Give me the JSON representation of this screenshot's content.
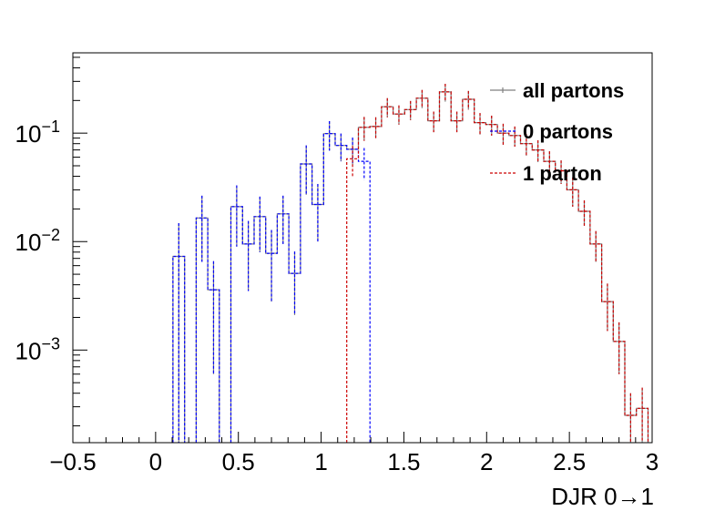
{
  "chart_data": {
    "type": "histogram",
    "xlabel": "DJR 0→1",
    "ylabel": "",
    "log_y": true,
    "xlim": [
      -0.5,
      3.0
    ],
    "ylim": [
      0.00014,
      0.55
    ],
    "bin_width": 0.07,
    "grid": false,
    "legend_position": "top-right",
    "x_tick_labels": [
      "−0.5",
      "0",
      "0.5",
      "1",
      "1.5",
      "2",
      "2.5",
      "3"
    ],
    "x_tick_values": [
      -0.5,
      0,
      0.5,
      1,
      1.5,
      2,
      2.5,
      3
    ],
    "y_tick_labels": [
      {
        "base": "10",
        "exp": "−1"
      },
      {
        "base": "10",
        "exp": "−2"
      },
      {
        "base": "10",
        "exp": "−3"
      }
    ],
    "y_tick_values": [
      0.1,
      0.01,
      0.001
    ],
    "series": [
      {
        "name": "all partons",
        "color": "#808080",
        "linestyle": "solid",
        "bins": [
          {
            "x": 0.14,
            "y": 0.0073,
            "err": 0.0075
          },
          {
            "x": 0.28,
            "y": 0.0165,
            "err": 0.01
          },
          {
            "x": 0.35,
            "y": 0.0036,
            "err": 0.003
          },
          {
            "x": 0.49,
            "y": 0.021,
            "err": 0.012
          },
          {
            "x": 0.56,
            "y": 0.0095,
            "err": 0.006
          },
          {
            "x": 0.63,
            "y": 0.017,
            "err": 0.009
          },
          {
            "x": 0.7,
            "y": 0.0078,
            "err": 0.005
          },
          {
            "x": 0.77,
            "y": 0.018,
            "err": 0.0085
          },
          {
            "x": 0.84,
            "y": 0.0051,
            "err": 0.003
          },
          {
            "x": 0.91,
            "y": 0.052,
            "err": 0.025
          },
          {
            "x": 0.98,
            "y": 0.022,
            "err": 0.012
          },
          {
            "x": 1.05,
            "y": 0.099,
            "err": 0.03
          },
          {
            "x": 1.12,
            "y": 0.077,
            "err": 0.022
          },
          {
            "x": 1.19,
            "y": 0.071,
            "err": 0.02
          },
          {
            "x": 1.26,
            "y": 0.113,
            "err": 0.028
          },
          {
            "x": 1.33,
            "y": 0.115,
            "err": 0.025
          },
          {
            "x": 1.4,
            "y": 0.175,
            "err": 0.035
          },
          {
            "x": 1.47,
            "y": 0.15,
            "err": 0.03
          },
          {
            "x": 1.54,
            "y": 0.165,
            "err": 0.033
          },
          {
            "x": 1.61,
            "y": 0.21,
            "err": 0.04
          },
          {
            "x": 1.68,
            "y": 0.13,
            "err": 0.028
          },
          {
            "x": 1.75,
            "y": 0.24,
            "err": 0.045
          },
          {
            "x": 1.82,
            "y": 0.13,
            "err": 0.028
          },
          {
            "x": 1.89,
            "y": 0.205,
            "err": 0.04
          },
          {
            "x": 1.96,
            "y": 0.125,
            "err": 0.028
          },
          {
            "x": 2.03,
            "y": 0.12,
            "err": 0.025
          },
          {
            "x": 2.1,
            "y": 0.1,
            "err": 0.022
          },
          {
            "x": 2.17,
            "y": 0.095,
            "err": 0.02
          },
          {
            "x": 2.24,
            "y": 0.08,
            "err": 0.018
          },
          {
            "x": 2.31,
            "y": 0.07,
            "err": 0.016
          },
          {
            "x": 2.38,
            "y": 0.055,
            "err": 0.013
          },
          {
            "x": 2.45,
            "y": 0.045,
            "err": 0.011
          },
          {
            "x": 2.52,
            "y": 0.03,
            "err": 0.009
          },
          {
            "x": 2.59,
            "y": 0.019,
            "err": 0.005
          },
          {
            "x": 2.66,
            "y": 0.0095,
            "err": 0.003
          },
          {
            "x": 2.73,
            "y": 0.0028,
            "err": 0.0013
          },
          {
            "x": 2.8,
            "y": 0.0012,
            "err": 0.0006
          },
          {
            "x": 2.87,
            "y": 0.00025,
            "err": 0.00015
          },
          {
            "x": 2.94,
            "y": 0.00029,
            "err": 0.00016
          }
        ]
      },
      {
        "name": "0 partons",
        "color": "#0000ff",
        "linestyle": "dashed",
        "bins": [
          {
            "x": 0.14,
            "y": 0.0073,
            "err": 0.0075
          },
          {
            "x": 0.28,
            "y": 0.0165,
            "err": 0.01
          },
          {
            "x": 0.35,
            "y": 0.0036,
            "err": 0.003
          },
          {
            "x": 0.49,
            "y": 0.021,
            "err": 0.012
          },
          {
            "x": 0.56,
            "y": 0.0095,
            "err": 0.006
          },
          {
            "x": 0.63,
            "y": 0.017,
            "err": 0.009
          },
          {
            "x": 0.7,
            "y": 0.0078,
            "err": 0.005
          },
          {
            "x": 0.77,
            "y": 0.018,
            "err": 0.0085
          },
          {
            "x": 0.84,
            "y": 0.0051,
            "err": 0.003
          },
          {
            "x": 0.91,
            "y": 0.052,
            "err": 0.025
          },
          {
            "x": 0.98,
            "y": 0.022,
            "err": 0.012
          },
          {
            "x": 1.05,
            "y": 0.099,
            "err": 0.03
          },
          {
            "x": 1.12,
            "y": 0.077,
            "err": 0.022
          },
          {
            "x": 1.19,
            "y": 0.071,
            "err": 0.02
          },
          {
            "x": 1.26,
            "y": 0.055,
            "err": 0.018
          }
        ]
      },
      {
        "name": "1 parton",
        "color": "#cc0000",
        "linestyle": "dashed",
        "bins": [
          {
            "x": 1.19,
            "y": 0.058,
            "err": 0.018
          },
          {
            "x": 1.26,
            "y": 0.113,
            "err": 0.028
          },
          {
            "x": 1.33,
            "y": 0.115,
            "err": 0.025
          },
          {
            "x": 1.4,
            "y": 0.175,
            "err": 0.035
          },
          {
            "x": 1.47,
            "y": 0.15,
            "err": 0.03
          },
          {
            "x": 1.54,
            "y": 0.165,
            "err": 0.033
          },
          {
            "x": 1.61,
            "y": 0.21,
            "err": 0.04
          },
          {
            "x": 1.68,
            "y": 0.13,
            "err": 0.028
          },
          {
            "x": 1.75,
            "y": 0.24,
            "err": 0.045
          },
          {
            "x": 1.82,
            "y": 0.13,
            "err": 0.028
          },
          {
            "x": 1.89,
            "y": 0.205,
            "err": 0.04
          },
          {
            "x": 1.96,
            "y": 0.125,
            "err": 0.028
          },
          {
            "x": 2.03,
            "y": 0.12,
            "err": 0.025
          },
          {
            "x": 2.1,
            "y": 0.1,
            "err": 0.022
          },
          {
            "x": 2.17,
            "y": 0.095,
            "err": 0.02
          },
          {
            "x": 2.24,
            "y": 0.08,
            "err": 0.018
          },
          {
            "x": 2.31,
            "y": 0.07,
            "err": 0.016
          },
          {
            "x": 2.38,
            "y": 0.055,
            "err": 0.013
          },
          {
            "x": 2.45,
            "y": 0.045,
            "err": 0.011
          },
          {
            "x": 2.52,
            "y": 0.03,
            "err": 0.009
          },
          {
            "x": 2.59,
            "y": 0.019,
            "err": 0.005
          },
          {
            "x": 2.66,
            "y": 0.0095,
            "err": 0.003
          },
          {
            "x": 2.73,
            "y": 0.0028,
            "err": 0.0013
          },
          {
            "x": 2.8,
            "y": 0.0012,
            "err": 0.0006
          },
          {
            "x": 2.87,
            "y": 0.00025,
            "err": 0.00015
          },
          {
            "x": 2.94,
            "y": 0.00029,
            "err": 0.00016
          }
        ]
      }
    ]
  }
}
